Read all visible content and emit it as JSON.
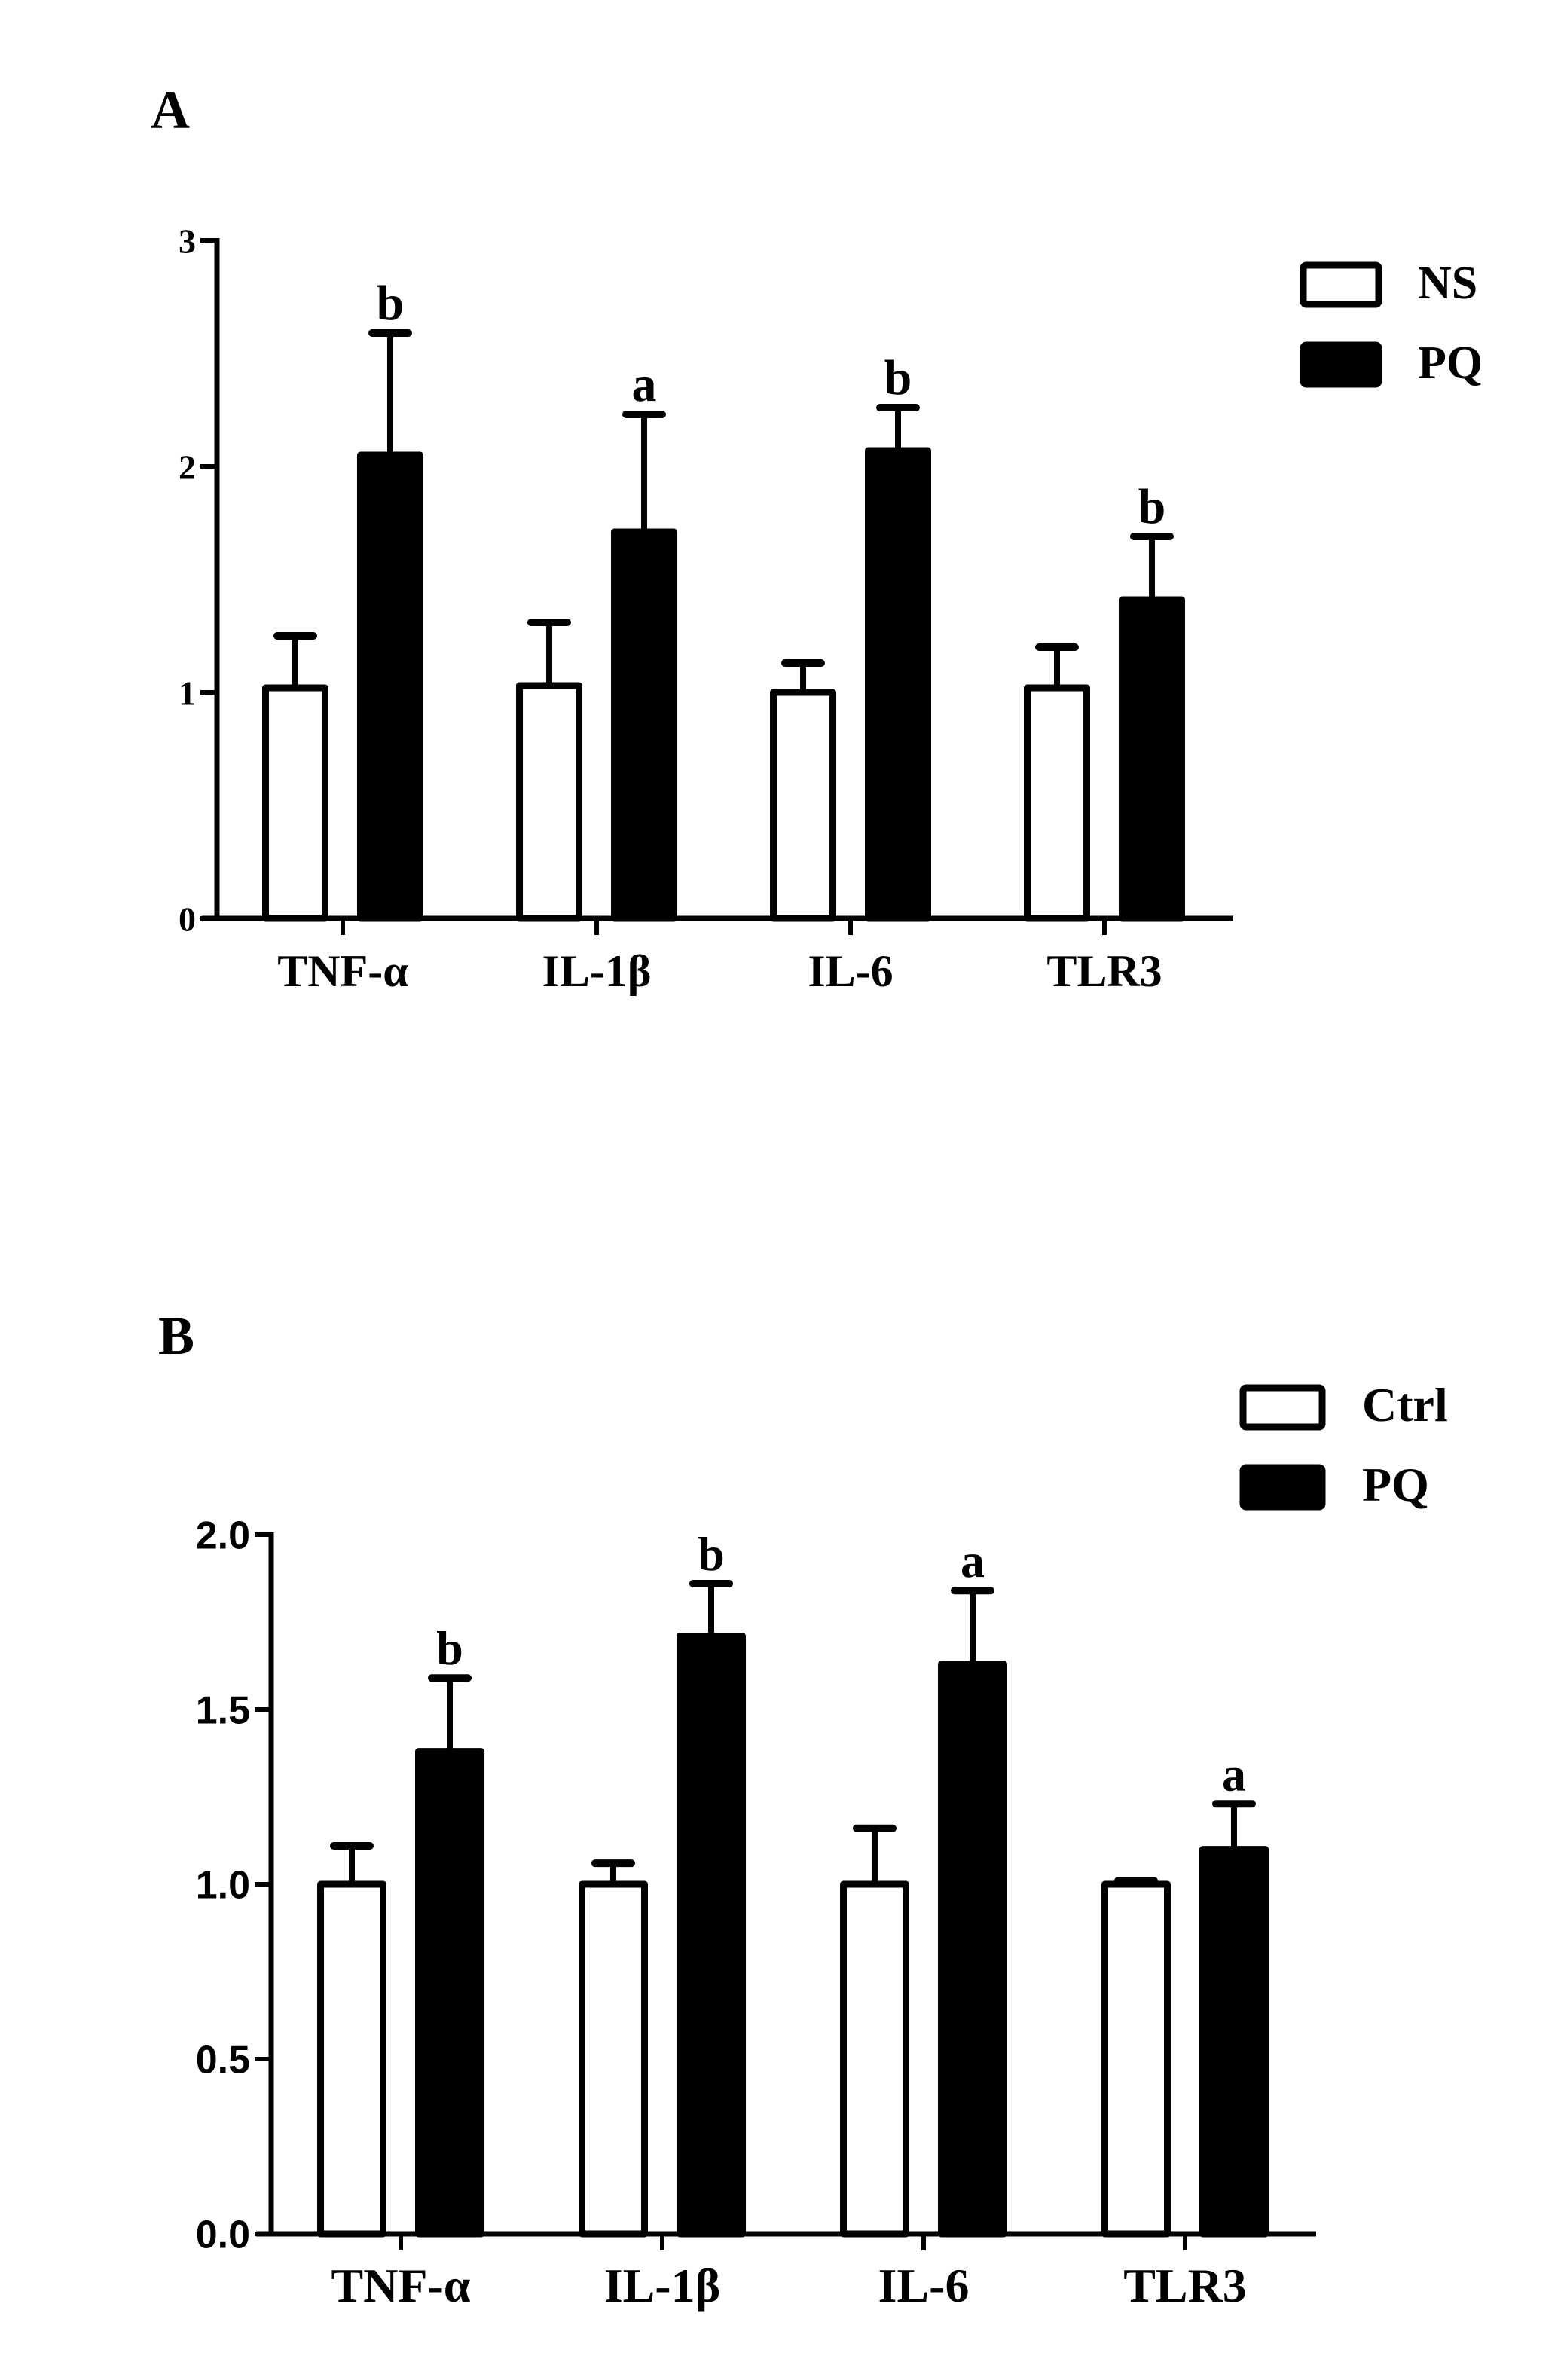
{
  "chart_data": [
    {
      "type": "bar",
      "panel_label": "A",
      "categories": [
        "TNF-α",
        "IL-1β",
        "IL-6",
        "TLR3"
      ],
      "ylim": [
        0,
        3
      ],
      "yticks": [
        "0",
        "1",
        "2",
        "3"
      ],
      "ytick_values": [
        0,
        1,
        2,
        3
      ],
      "legend_position": "top-right",
      "series": [
        {
          "name": "NS",
          "color": "#ffffff",
          "values": [
            1.02,
            1.03,
            1.0,
            1.02
          ],
          "error_upper": [
            1.25,
            1.31,
            1.13,
            1.2
          ],
          "annotations": [
            "",
            "",
            "",
            ""
          ]
        },
        {
          "name": "PQ",
          "color": "#000000",
          "values": [
            2.05,
            1.71,
            2.07,
            1.41
          ],
          "error_upper": [
            2.59,
            2.23,
            2.26,
            1.69
          ],
          "annotations": [
            "b",
            "a",
            "b",
            "b"
          ]
        }
      ]
    },
    {
      "type": "bar",
      "panel_label": "B",
      "categories": [
        "TNF-α",
        "IL-1β",
        "IL-6",
        "TLR3"
      ],
      "ylim": [
        0,
        2
      ],
      "yticks": [
        "0.0",
        "0.5",
        "1.0",
        "1.5",
        "2.0"
      ],
      "ytick_values": [
        0,
        0.5,
        1,
        1.5,
        2
      ],
      "legend_position": "top-right",
      "series": [
        {
          "name": "Ctrl",
          "color": "#ffffff",
          "values": [
            1.0,
            1.0,
            1.0,
            1.0
          ],
          "error_upper": [
            1.11,
            1.06,
            1.16,
            1.01
          ],
          "annotations": [
            "",
            "",
            "",
            ""
          ]
        },
        {
          "name": "PQ",
          "color": "#000000",
          "values": [
            1.38,
            1.71,
            1.63,
            1.1
          ],
          "error_upper": [
            1.59,
            1.86,
            1.84,
            1.23
          ],
          "annotations": [
            "b",
            "b",
            "a",
            "a"
          ]
        }
      ]
    }
  ]
}
